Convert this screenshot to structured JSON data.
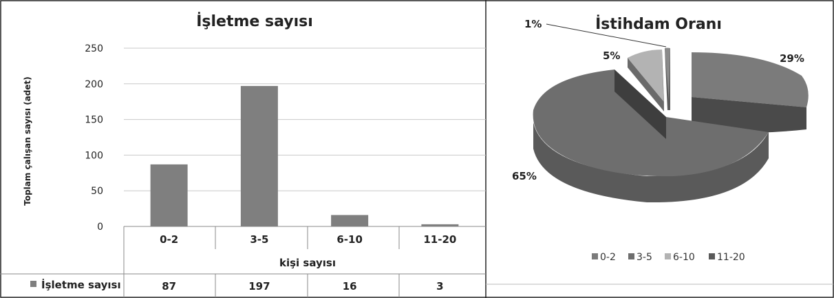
{
  "chart_data": [
    {
      "type": "bar",
      "title": "İşletme sayısı",
      "xlabel": "kişi sayısı",
      "ylabel": "Toplam çalışan sayısı (adet)",
      "categories": [
        "0-2",
        "3-5",
        "6-10",
        "11-20"
      ],
      "series": [
        {
          "name": "İşletme sayısı",
          "values": [
            87,
            197,
            16,
            3
          ]
        }
      ],
      "ylim": [
        0,
        250
      ],
      "yticks": [
        0,
        50,
        100,
        150,
        200,
        250
      ],
      "grid": true,
      "data_table": true,
      "colors": {
        "bar": "#7f7f7f",
        "grid": "#c8c8c8"
      }
    },
    {
      "type": "pie",
      "title": "İstihdam Oranı",
      "labels": [
        "0-2",
        "3-5",
        "6-10",
        "11-20"
      ],
      "values": [
        29,
        65,
        5,
        1
      ],
      "data_labels": [
        "29%",
        "65%",
        "5%",
        "1%"
      ],
      "legend": "bottom",
      "exploded": true,
      "three_d": true,
      "colors": [
        "#7b7b7b",
        "#6e6e6e",
        "#b3b3b3",
        "#5a5a5a"
      ]
    }
  ]
}
